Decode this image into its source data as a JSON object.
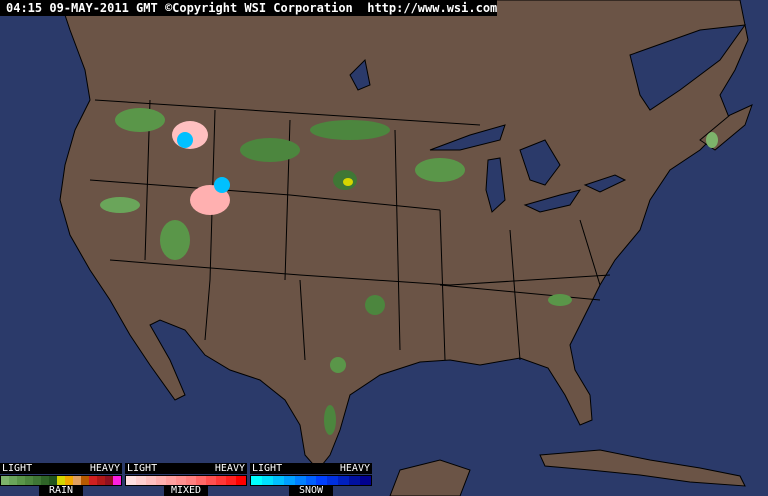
{
  "header": {
    "text": "04:15 09-MAY-2011 GMT ©Copyright WSI Corporation  http://www.wsi.com"
  },
  "colors": {
    "ocean": "#2b3a6a",
    "land": "#6b5446",
    "border": "#000000",
    "rain_light": "#4f8f3f"
  },
  "legend": [
    {
      "name": "RAIN",
      "light": "LIGHT",
      "heavy": "HEAVY",
      "colors": [
        "#7db36b",
        "#6aa55a",
        "#5a9649",
        "#4c863e",
        "#3f7735",
        "#2f6528",
        "#21551c",
        "#d6d600",
        "#f0a800",
        "#e0a060",
        "#b85a00",
        "#d02020",
        "#b01818",
        "#901020",
        "#ff20e0"
      ]
    },
    {
      "name": "MIXED",
      "light": "LIGHT",
      "heavy": "HEAVY",
      "colors": [
        "#ffe0e0",
        "#ffd0d0",
        "#ffc0c0",
        "#ffb0b0",
        "#ffa0a0",
        "#ff9090",
        "#ff8080",
        "#ff6868",
        "#ff5050",
        "#ff3838",
        "#ff2020",
        "#ff0000"
      ]
    },
    {
      "name": "SNOW",
      "light": "LIGHT",
      "heavy": "HEAVY",
      "colors": [
        "#00ffff",
        "#00e0ff",
        "#00c0ff",
        "#00a0ff",
        "#0080ff",
        "#0060ff",
        "#0040ff",
        "#0030e0",
        "#0020c0",
        "#0010a0",
        "#000090"
      ]
    }
  ]
}
